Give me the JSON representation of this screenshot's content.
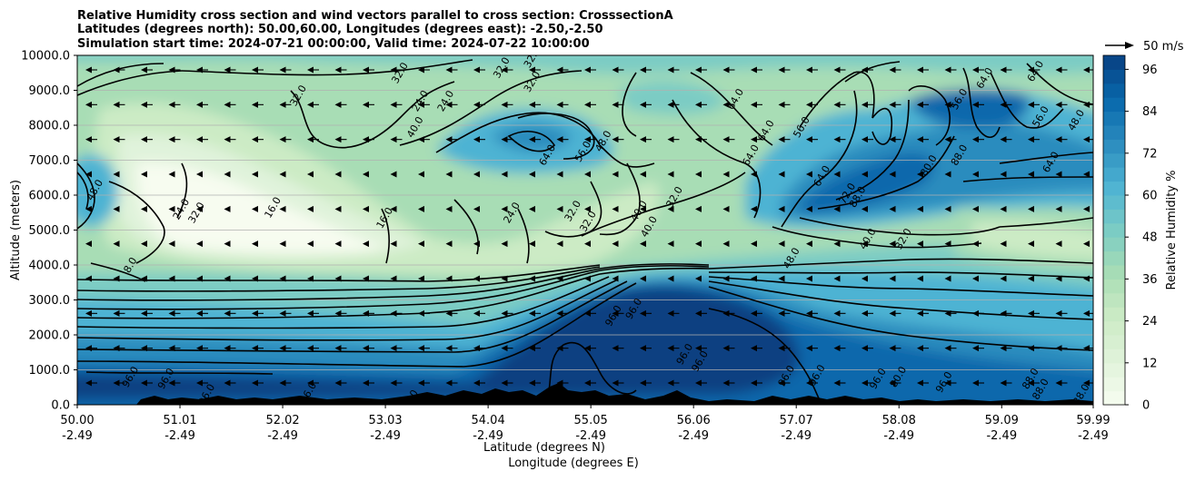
{
  "chart_data": {
    "type": "heatmap",
    "title_lines": [
      "Relative Humidity cross section and wind vectors parallel to cross section: CrosssectionA",
      "Latitudes (degrees north): 50.00,60.00, Longitudes (degrees east): -2.50,-2.50",
      "Simulation start time: 2024-07-21 00:00:00, Valid time: 2024-07-22 10:00:00"
    ],
    "ylabel": "Altitude (meters)",
    "xlabel_lines": [
      "Latitude (degrees N)",
      "Longitude (degrees E)"
    ],
    "colorbar_label": "Relative Humidity %",
    "quiver_key_label": "50 m/s",
    "x_tick_values": [
      50.0,
      51.01,
      52.02,
      53.03,
      54.04,
      55.05,
      56.06,
      57.07,
      58.08,
      59.09,
      59.99
    ],
    "x_tick_labels": [
      [
        "50.00",
        "-2.49"
      ],
      [
        "51.01",
        "-2.49"
      ],
      [
        "52.02",
        "-2.49"
      ],
      [
        "53.03",
        "-2.49"
      ],
      [
        "54.04",
        "-2.49"
      ],
      [
        "55.05",
        "-2.49"
      ],
      [
        "56.06",
        "-2.49"
      ],
      [
        "57.07",
        "-2.49"
      ],
      [
        "58.08",
        "-2.49"
      ],
      [
        "59.09",
        "-2.49"
      ],
      [
        "59.99",
        "-2.49"
      ]
    ],
    "y_tick_labels": [
      "0.0",
      "1000.0",
      "2000.0",
      "3000.0",
      "4000.0",
      "5000.0",
      "6000.0",
      "7000.0",
      "8000.0",
      "9000.0",
      "10000.0"
    ],
    "xlim": [
      50.0,
      59.99
    ],
    "ylim": [
      0,
      10000
    ],
    "colorbar_ticks": [
      "0",
      "12",
      "24",
      "36",
      "48",
      "60",
      "72",
      "84",
      "96"
    ],
    "colorbar_range": [
      0,
      100
    ],
    "grid": "horizontal",
    "colormap": [
      "#f7fcf0",
      "#e0f3db",
      "#ccebc5",
      "#a8ddb5",
      "#7bccc4",
      "#4eb3d3",
      "#2b8cbe",
      "#0868ac",
      "#084081"
    ],
    "contour_color": "#000000",
    "terrain_color": "#000000",
    "wind_direction": "toward decreasing latitude (southward) at most levels",
    "contour_labels": [
      {
        "lat": 51.2,
        "alt": 5450,
        "text": "32.0"
      },
      {
        "lat": 51.05,
        "alt": 5550,
        "text": "24.0"
      },
      {
        "lat": 50.2,
        "alt": 6100,
        "text": "48.0"
      },
      {
        "lat": 50.55,
        "alt": 3950,
        "text": "8.0"
      },
      {
        "lat": 51.95,
        "alt": 5600,
        "text": "16.0"
      },
      {
        "lat": 53.05,
        "alt": 5300,
        "text": "16.0"
      },
      {
        "lat": 52.2,
        "alt": 8800,
        "text": "32.0"
      },
      {
        "lat": 53.2,
        "alt": 9450,
        "text": "32.0"
      },
      {
        "lat": 53.4,
        "alt": 8650,
        "text": "24.0"
      },
      {
        "lat": 53.65,
        "alt": 8650,
        "text": "24.0"
      },
      {
        "lat": 53.35,
        "alt": 7900,
        "text": "40.0"
      },
      {
        "lat": 54.2,
        "alt": 9600,
        "text": "32.0"
      },
      {
        "lat": 54.5,
        "alt": 9200,
        "text": "32.0"
      },
      {
        "lat": 54.5,
        "alt": 9900,
        "text": "32.0"
      },
      {
        "lat": 54.65,
        "alt": 7100,
        "text": "64.0"
      },
      {
        "lat": 55.0,
        "alt": 7200,
        "text": "56.0"
      },
      {
        "lat": 55.2,
        "alt": 7500,
        "text": "48.0"
      },
      {
        "lat": 54.3,
        "alt": 5450,
        "text": "24.0"
      },
      {
        "lat": 54.9,
        "alt": 5500,
        "text": "32.0"
      },
      {
        "lat": 55.05,
        "alt": 5200,
        "text": "32.0"
      },
      {
        "lat": 55.55,
        "alt": 5500,
        "text": "40.0"
      },
      {
        "lat": 55.9,
        "alt": 5900,
        "text": "32.0"
      },
      {
        "lat": 55.65,
        "alt": 5050,
        "text": "40.0"
      },
      {
        "lat": 56.5,
        "alt": 8700,
        "text": "64.0"
      },
      {
        "lat": 56.8,
        "alt": 7800,
        "text": "64.0"
      },
      {
        "lat": 57.15,
        "alt": 7900,
        "text": "56.0"
      },
      {
        "lat": 56.65,
        "alt": 7100,
        "text": "64.0"
      },
      {
        "lat": 57.35,
        "alt": 6500,
        "text": "64.0"
      },
      {
        "lat": 57.6,
        "alt": 6000,
        "text": "72.0"
      },
      {
        "lat": 57.7,
        "alt": 5900,
        "text": "88.0"
      },
      {
        "lat": 57.8,
        "alt": 4700,
        "text": "40.0"
      },
      {
        "lat": 58.15,
        "alt": 4700,
        "text": "32.0"
      },
      {
        "lat": 57.05,
        "alt": 4150,
        "text": "48.0"
      },
      {
        "lat": 58.4,
        "alt": 6800,
        "text": "80.0"
      },
      {
        "lat": 58.7,
        "alt": 7100,
        "text": "88.0"
      },
      {
        "lat": 58.7,
        "alt": 8700,
        "text": "56.0"
      },
      {
        "lat": 59.6,
        "alt": 6900,
        "text": "64.0"
      },
      {
        "lat": 59.5,
        "alt": 8200,
        "text": "56.0"
      },
      {
        "lat": 59.85,
        "alt": 8100,
        "text": "48.0"
      },
      {
        "lat": 59.45,
        "alt": 9500,
        "text": "64.0"
      },
      {
        "lat": 58.95,
        "alt": 9300,
        "text": "64.0"
      },
      {
        "lat": 55.5,
        "alt": 2700,
        "text": "96.0"
      },
      {
        "lat": 55.3,
        "alt": 2500,
        "text": "96.0"
      },
      {
        "lat": 56.0,
        "alt": 1400,
        "text": "96.0"
      },
      {
        "lat": 56.15,
        "alt": 1200,
        "text": "96.0"
      },
      {
        "lat": 50.55,
        "alt": 750,
        "text": "96.0"
      },
      {
        "lat": 50.9,
        "alt": 700,
        "text": "96.0"
      },
      {
        "lat": 57.0,
        "alt": 780,
        "text": "96.0"
      },
      {
        "lat": 57.3,
        "alt": 800,
        "text": "96.0"
      },
      {
        "lat": 57.9,
        "alt": 700,
        "text": "96.0"
      },
      {
        "lat": 58.55,
        "alt": 600,
        "text": "96.0"
      },
      {
        "lat": 58.1,
        "alt": 750,
        "text": "80.0"
      },
      {
        "lat": 59.4,
        "alt": 700,
        "text": "88.0"
      },
      {
        "lat": 59.5,
        "alt": 400,
        "text": "88.0"
      },
      {
        "lat": 59.9,
        "alt": 250,
        "text": "88.0"
      },
      {
        "lat": 53.3,
        "alt": 80,
        "text": "72.0"
      },
      {
        "lat": 54.1,
        "alt": 60,
        "text": "72.0"
      },
      {
        "lat": 52.3,
        "alt": 300,
        "text": "96.0"
      },
      {
        "lat": 51.3,
        "alt": 250,
        "text": "96.0"
      }
    ]
  }
}
